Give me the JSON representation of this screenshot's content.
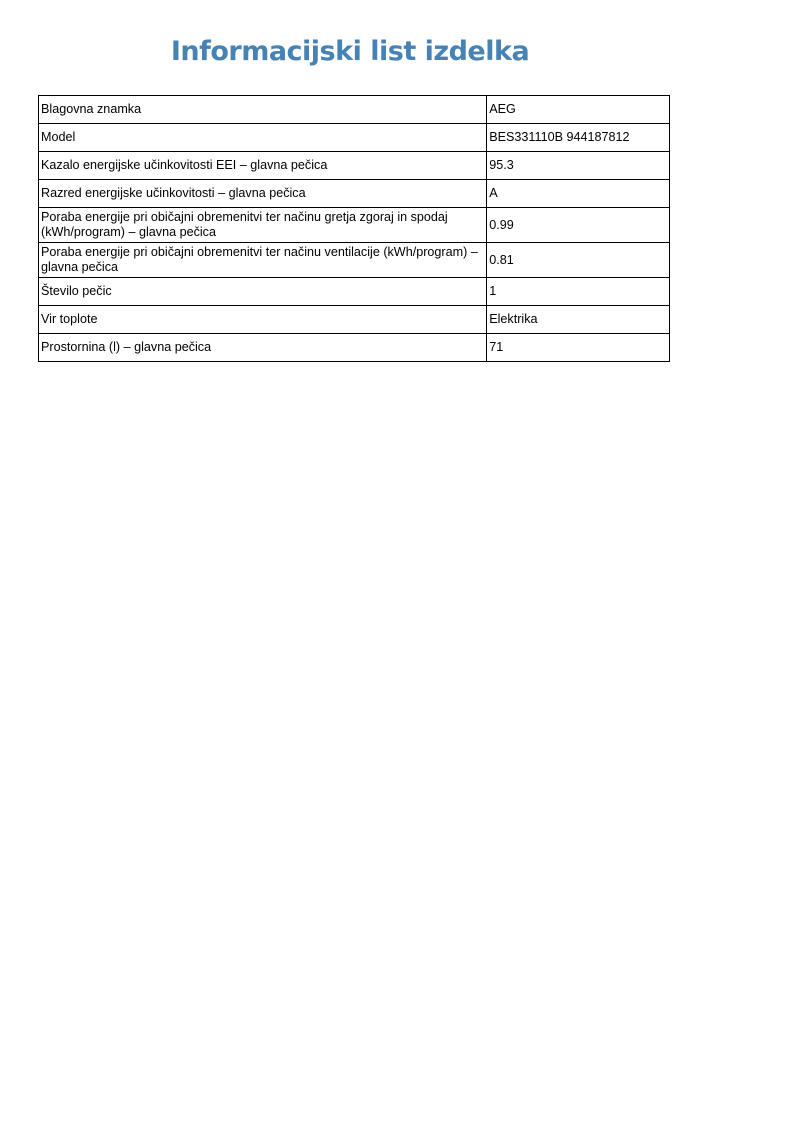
{
  "title": "Informacijski list izdelka",
  "rows": [
    {
      "label": "Blagovna znamka",
      "value": "AEG"
    },
    {
      "label": "Model",
      "value": "BES331110B 944187812"
    },
    {
      "label": "Kazalo energijske učinkovitosti EEI – glavna pečica",
      "value": "95.3"
    },
    {
      "label": "Razred energijske učinkovitosti – glavna pečica",
      "value": "A"
    },
    {
      "label": "Poraba energije pri običajni obremenitvi ter načinu gretja zgoraj in spodaj (kWh/program) – glavna pečica",
      "value": "0.99"
    },
    {
      "label": "Poraba energije pri običajni obremenitvi ter načinu ventilacije (kWh/program) – glavna pečica",
      "value": "0.81"
    },
    {
      "label": "Število pečic",
      "value": "1"
    },
    {
      "label": "Vir toplote",
      "value": "Elektrika"
    },
    {
      "label": "Prostornina (l) – glavna pečica",
      "value": "71"
    }
  ]
}
